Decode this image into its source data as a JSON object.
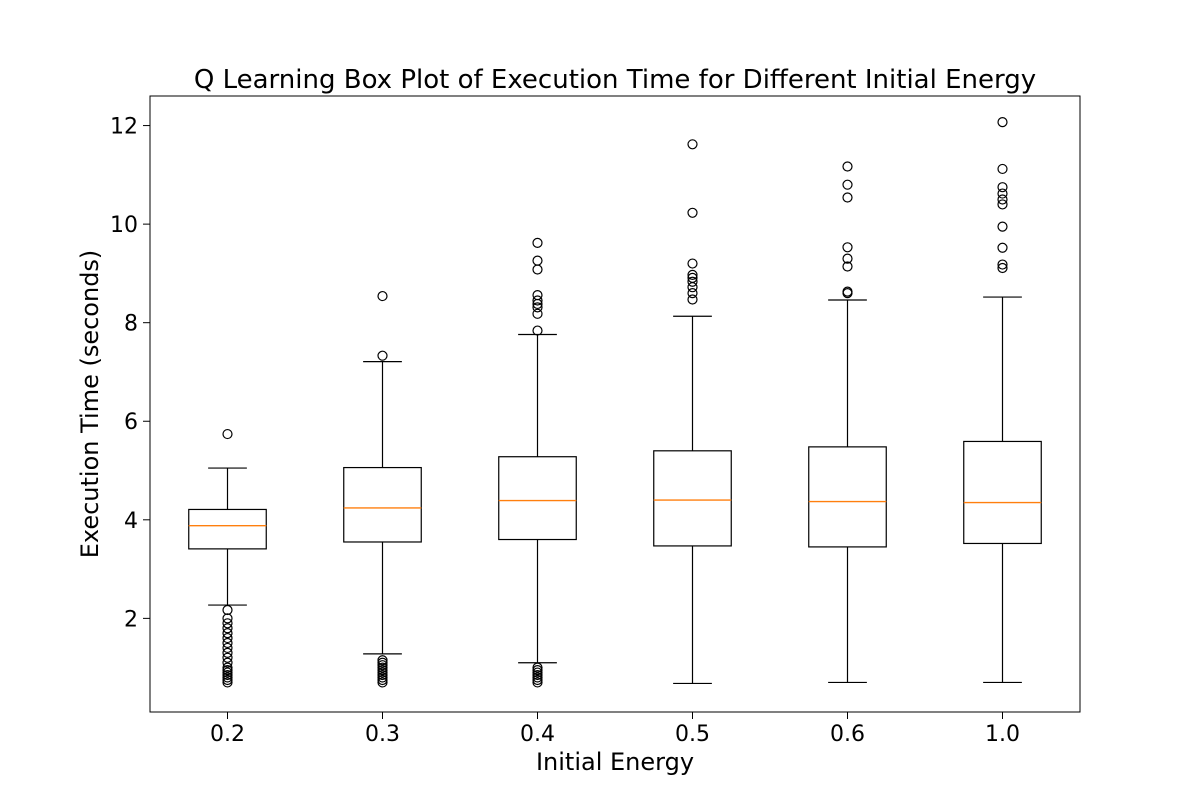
{
  "chart_data": {
    "type": "box",
    "title": "Q Learning Box Plot of Execution Time for Different Initial Energy",
    "xlabel": "Initial Energy",
    "ylabel": "Execution Time (seconds)",
    "categories": [
      "0.2",
      "0.3",
      "0.4",
      "0.5",
      "0.6",
      "1.0"
    ],
    "ylim": [
      0.1,
      12.6
    ],
    "yticks": [
      2,
      4,
      6,
      8,
      10,
      12
    ],
    "grid": false,
    "colors": {
      "box": "#000000",
      "median": "#ff7f0e",
      "outlier": "#000000"
    },
    "boxes": [
      {
        "category": "0.2",
        "whisker_low": 2.27,
        "q1": 3.41,
        "median": 3.88,
        "q3": 4.21,
        "whisker_high": 5.05,
        "outliers": [
          5.74,
          2.17,
          2.0,
          1.9,
          1.8,
          1.7,
          1.6,
          1.5,
          1.4,
          1.3,
          1.2,
          1.1,
          1.0,
          0.95,
          0.9,
          0.85,
          0.8,
          0.75,
          0.7
        ]
      },
      {
        "category": "0.3",
        "whisker_low": 1.28,
        "q1": 3.55,
        "median": 4.24,
        "q3": 5.06,
        "whisker_high": 7.21,
        "outliers": [
          8.54,
          7.33,
          1.15,
          1.1,
          1.05,
          1.0,
          0.95,
          0.9,
          0.85,
          0.8,
          0.75,
          0.7
        ]
      },
      {
        "category": "0.4",
        "whisker_low": 1.1,
        "q1": 3.6,
        "median": 4.39,
        "q3": 5.28,
        "whisker_high": 7.76,
        "outliers": [
          9.62,
          9.26,
          9.08,
          8.56,
          8.45,
          8.38,
          8.31,
          8.18,
          7.84,
          1.0,
          0.95,
          0.9,
          0.85,
          0.8,
          0.75,
          0.7
        ]
      },
      {
        "category": "0.5",
        "whisker_low": 0.68,
        "q1": 3.47,
        "median": 4.4,
        "q3": 5.4,
        "whisker_high": 8.13,
        "outliers": [
          11.62,
          10.23,
          9.2,
          8.97,
          8.91,
          8.83,
          8.72,
          8.6,
          8.47
        ]
      },
      {
        "category": "0.6",
        "whisker_low": 0.7,
        "q1": 3.45,
        "median": 4.37,
        "q3": 5.48,
        "whisker_high": 8.46,
        "outliers": [
          11.17,
          10.8,
          10.54,
          9.53,
          9.3,
          9.14,
          8.63,
          8.6
        ]
      },
      {
        "category": "1.0",
        "whisker_low": 0.7,
        "q1": 3.52,
        "median": 4.35,
        "q3": 5.59,
        "whisker_high": 8.52,
        "outliers": [
          12.07,
          11.12,
          10.75,
          10.62,
          10.5,
          10.4,
          9.95,
          9.52,
          9.18,
          9.11
        ]
      }
    ]
  }
}
